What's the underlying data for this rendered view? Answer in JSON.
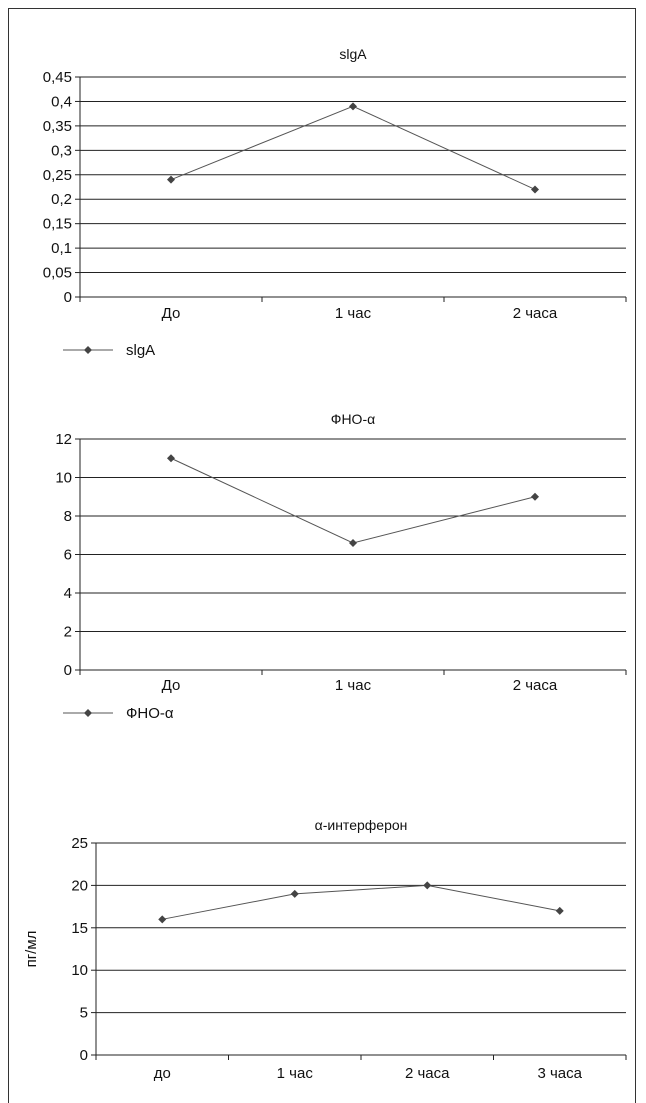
{
  "chart_data": [
    {
      "type": "line",
      "title": "slgA",
      "categories": [
        "До",
        "1 час",
        "2 часа"
      ],
      "series": [
        {
          "name": "slgA",
          "values": [
            0.24,
            0.39,
            0.22
          ],
          "color": "#555555"
        }
      ],
      "ylim": [
        0,
        0.45
      ],
      "yticks": [
        "0",
        "0,05",
        "0,1",
        "0,15",
        "0,2",
        "0,25",
        "0,3",
        "0,35",
        "0,4",
        "0,45"
      ],
      "ylabel": "",
      "grid": true,
      "legend": "bottom-left"
    },
    {
      "type": "line",
      "title": "ФНО-α",
      "categories": [
        "До",
        "1 час",
        "2 часа"
      ],
      "series": [
        {
          "name": "ФНО-α",
          "values": [
            11,
            6.6,
            9
          ],
          "color": "#555555"
        }
      ],
      "ylim": [
        0,
        12
      ],
      "yticks": [
        "0",
        "2",
        "4",
        "6",
        "8",
        "10",
        "12"
      ],
      "ylabel": "",
      "grid": true,
      "legend": "bottom-left"
    },
    {
      "type": "line",
      "title": "α-интерферон",
      "categories": [
        "до",
        "1 час",
        "2 часа",
        "3 часа"
      ],
      "series": [
        {
          "values": [
            16,
            19,
            20,
            17
          ],
          "color": "#555555"
        }
      ],
      "ylim": [
        0,
        25
      ],
      "yticks": [
        "0",
        "5",
        "10",
        "15",
        "20",
        "25"
      ],
      "ylabel": "пг/мл",
      "grid": true,
      "legend": "none"
    }
  ]
}
